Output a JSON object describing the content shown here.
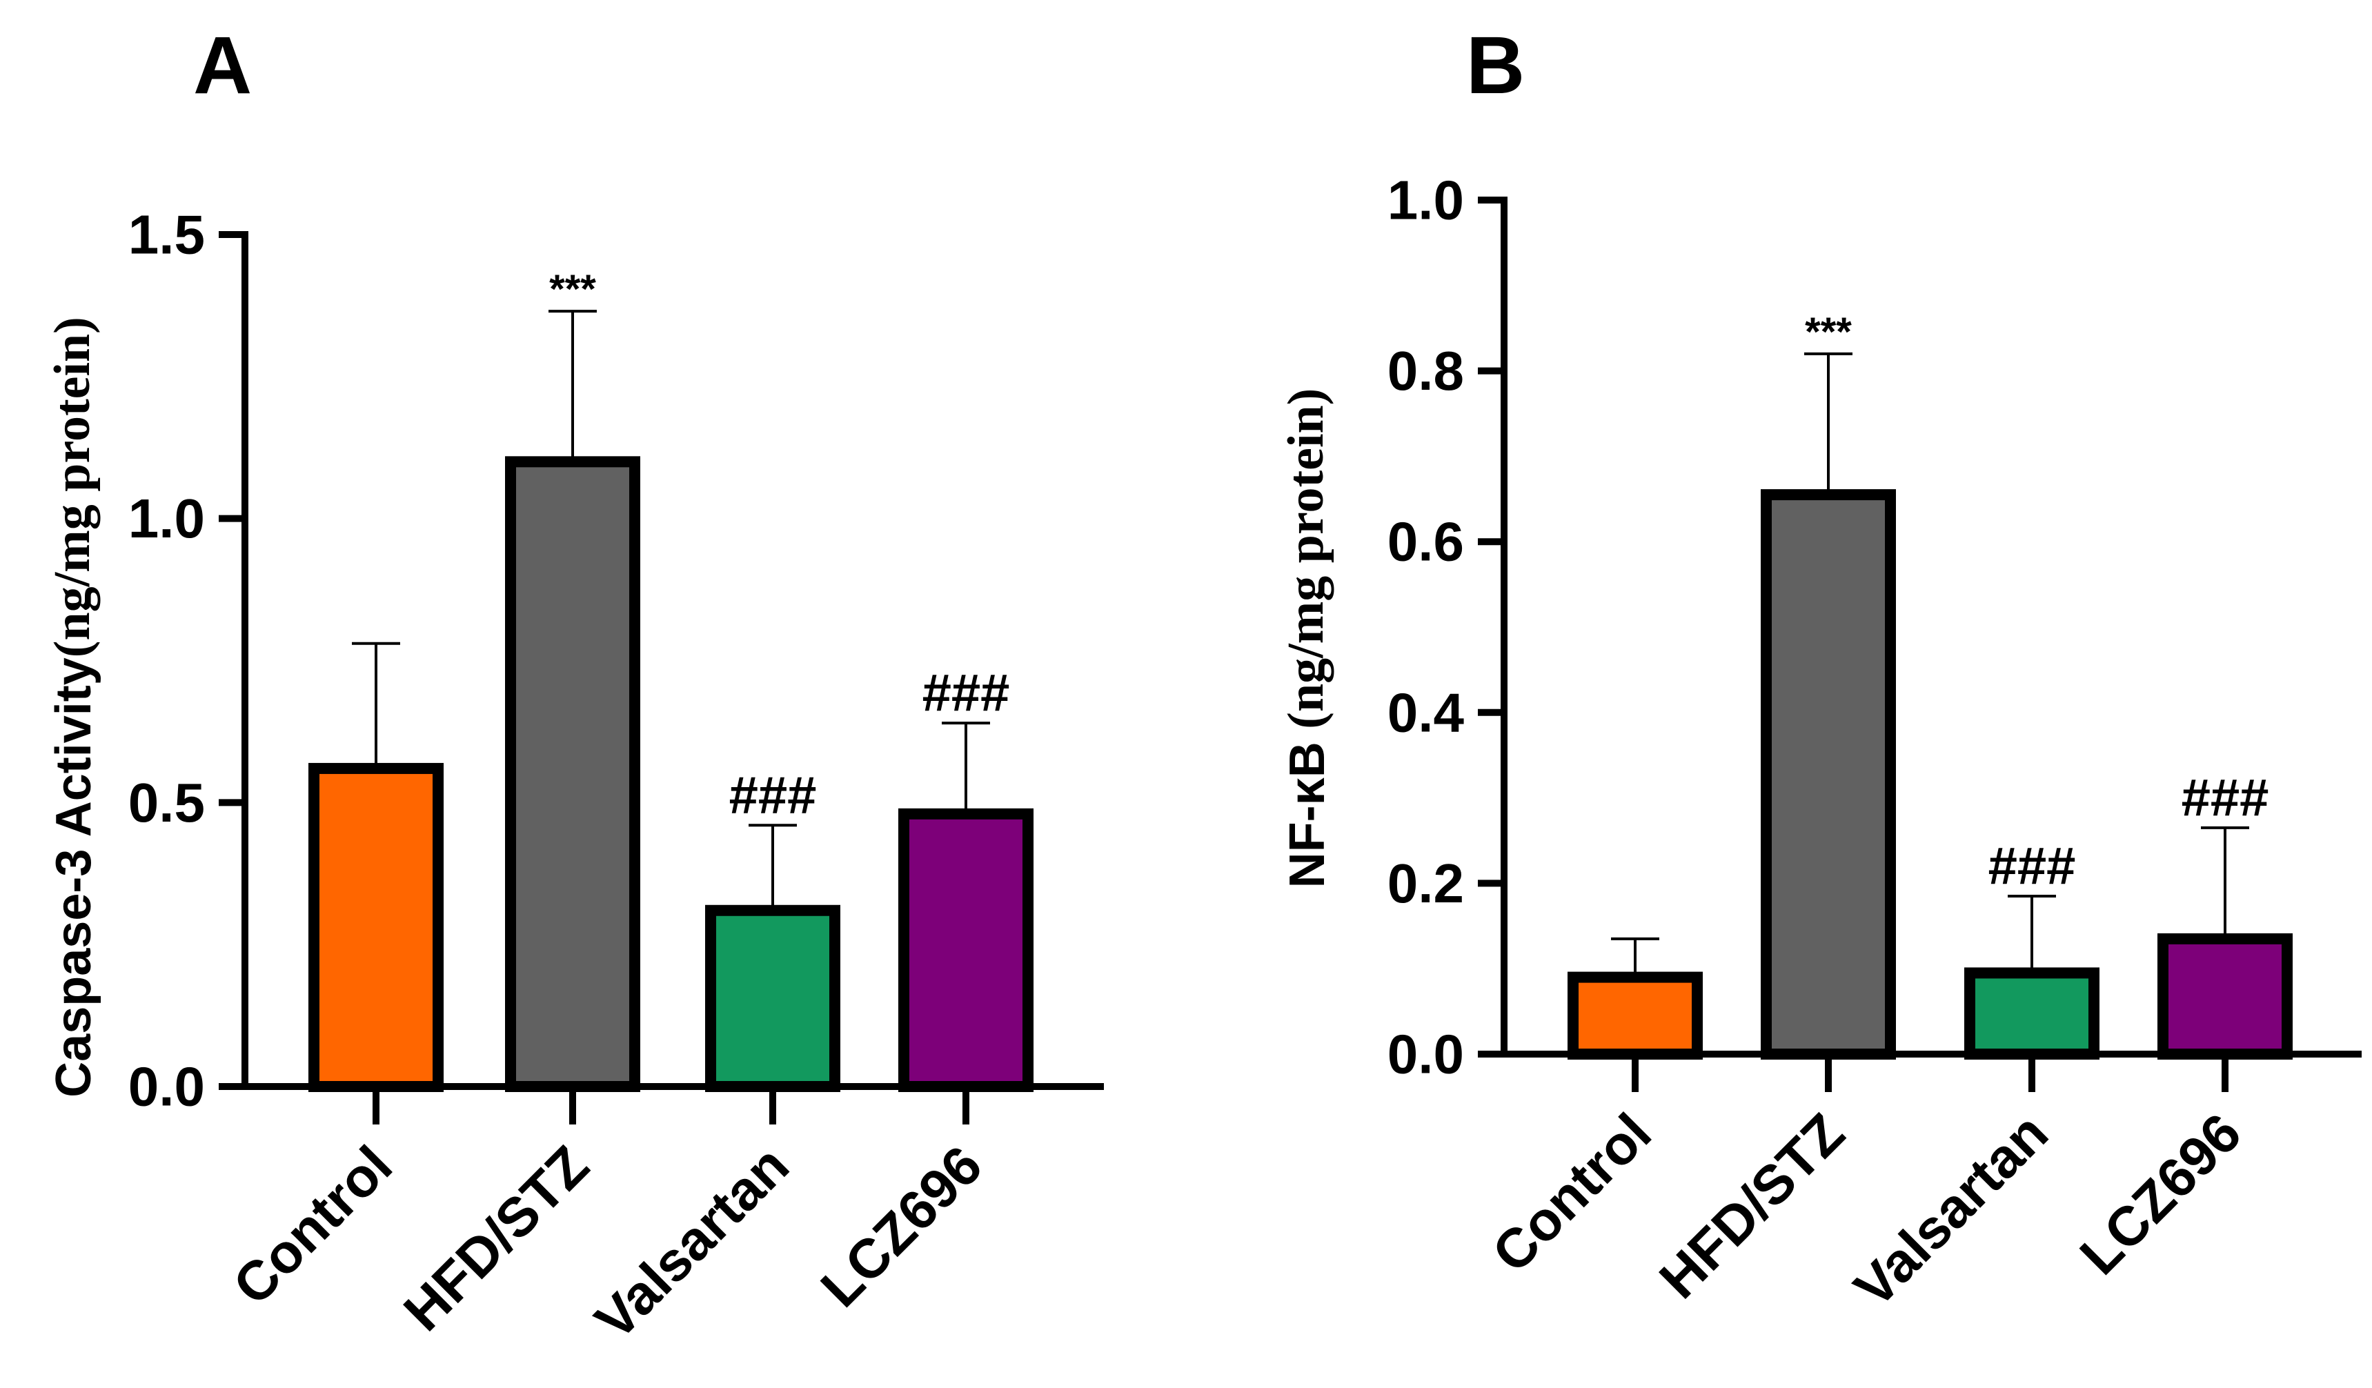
{
  "chart_data": [
    {
      "panel": "A",
      "type": "bar",
      "categories": [
        "Control",
        "HFD/STZ",
        "Valsartan",
        "LCZ696"
      ],
      "values": [
        0.56,
        1.1,
        0.31,
        0.48
      ],
      "errors": [
        0.22,
        0.265,
        0.15,
        0.16
      ],
      "colors": [
        "#ff6600",
        "#616161",
        "#12995e",
        "#7d0079"
      ],
      "annotations": [
        "",
        "***",
        "###",
        "###"
      ],
      "ylabel_prefix": "Caspase-3 Activity",
      "ylabel_unit": "(ng/mg protein)",
      "ylim": [
        0,
        1.5
      ],
      "ticks": [
        0.0,
        0.5,
        1.0,
        1.5
      ],
      "tick_labels": [
        "0.0",
        "0.5",
        "1.0",
        "1.5"
      ]
    },
    {
      "panel": "B",
      "type": "bar",
      "categories": [
        "Control",
        "HFD/STZ",
        "Valsartan",
        "LCZ696"
      ],
      "values": [
        0.09,
        0.655,
        0.095,
        0.135
      ],
      "errors": [
        0.045,
        0.165,
        0.09,
        0.13
      ],
      "colors": [
        "#ff6600",
        "#616161",
        "#12995e",
        "#7d0079"
      ],
      "annotations": [
        "",
        "***",
        "###",
        "###"
      ],
      "ylabel_prefix": "NF-κB",
      "ylabel_unit": " (ng/mg protein)",
      "ylim": [
        0,
        1.0
      ],
      "ticks": [
        0.0,
        0.2,
        0.4,
        0.6,
        0.8,
        1.0
      ],
      "tick_labels": [
        "0.0",
        "0.2",
        "0.4",
        "0.6",
        "0.8",
        "1.0"
      ]
    }
  ]
}
